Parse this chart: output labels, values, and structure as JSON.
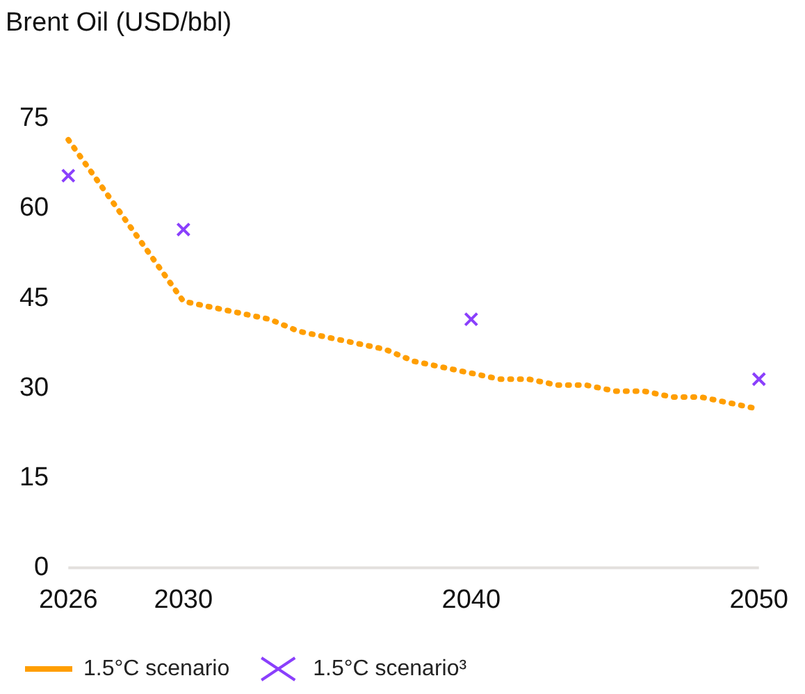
{
  "chart_data": {
    "type": "line",
    "title": "Brent Oil (USD/bbl)",
    "xlim": [
      2026,
      2050
    ],
    "xticks": [
      2026,
      2030,
      2040,
      2050
    ],
    "ylim": [
      0,
      75
    ],
    "yticks": [
      0,
      15,
      30,
      45,
      60,
      75
    ],
    "grid": false,
    "legend": "bottom left",
    "series": [
      {
        "name": "1.5°C scenario",
        "type": "line",
        "color": "#ff9e00",
        "line_style": "dotted",
        "marker": "none",
        "x": [
          2026,
          2030,
          2033,
          2034,
          2037,
          2038,
          2040,
          2041,
          2042,
          2043,
          2044,
          2045,
          2046,
          2047,
          2048,
          2050
        ],
        "values": [
          71.5,
          44.5,
          41.5,
          39.5,
          36.5,
          34.5,
          32.5,
          31.5,
          31.5,
          30.5,
          30.5,
          29.5,
          29.5,
          28.5,
          28.5,
          26.5
        ]
      },
      {
        "name": "1.5°C scenario³",
        "type": "scatter",
        "color": "#8a3ffc",
        "marker": "cross",
        "x": [
          2026,
          2030,
          2040,
          2050
        ],
        "values": [
          65.5,
          56.5,
          41.5,
          31.5
        ]
      }
    ]
  }
}
